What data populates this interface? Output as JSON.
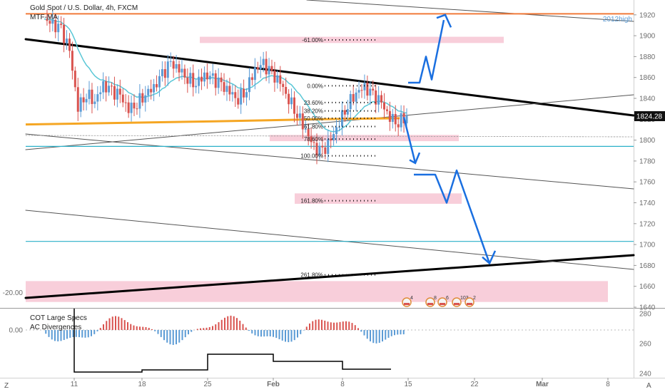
{
  "header": {
    "title": "Gold Spot / U.S. Dollar, 4h, FXCM",
    "indicator": "MTF-MA"
  },
  "labels": {
    "level_2012": "2012high",
    "price_badge": "1824.28",
    "sub_indicator_1": "COT Large Specs",
    "sub_indicator_2": "AC Divergences",
    "corner_left": "Z",
    "corner_right": "A"
  },
  "events": [
    "4",
    "8",
    "6",
    "103",
    "2"
  ],
  "colors": {
    "bull": "#5b9bd5",
    "bear": "#d9534f",
    "ma": "#5ac7d6",
    "golden": "#f5a623",
    "arrow": "#1a6fe0",
    "high_line": "#f07a3a",
    "zone": "#f7c6d4"
  },
  "chart_data": [
    {
      "type": "line",
      "title": "Gold Spot / U.S. Dollar, 4h, FXCM",
      "x_ticks": [
        "11",
        "18",
        "25",
        "Feb",
        "8",
        "15",
        "22",
        "Mar",
        "8"
      ],
      "y_ticks": [
        1920,
        1900,
        1880,
        1860,
        1840,
        1820,
        1800,
        1780,
        1760,
        1740,
        1720,
        1700,
        1680,
        1660,
        1640
      ],
      "ylim": [
        1638,
        1930
      ],
      "last_price": 1824.28,
      "horizontal_levels": [
        {
          "label": "2012high",
          "value": 1921,
          "color": "#f07a3a"
        },
        {
          "value": 1794,
          "color": "#2ab0c8"
        },
        {
          "value": 1703,
          "color": "#2ab0c8"
        }
      ],
      "fib_levels": [
        {
          "label": "-61.00%",
          "value": 1896
        },
        {
          "label": "0.00%",
          "value": 1852
        },
        {
          "label": "23.60%",
          "value": 1836
        },
        {
          "label": "38.20%",
          "value": 1828
        },
        {
          "label": "50.00%",
          "value": 1821
        },
        {
          "label": "61.80%",
          "value": 1813
        },
        {
          "label": "78.60%",
          "value": 1801
        },
        {
          "label": "100.00%",
          "value": 1785
        },
        {
          "label": "161.80%",
          "value": 1742
        },
        {
          "label": "261.80%",
          "value": 1671
        }
      ],
      "series": [
        {
          "values": [
            1916,
            1910,
            1905,
            1885,
            1832,
            1845,
            1838,
            1852,
            1846,
            1842,
            1830,
            1836,
            1845,
            1850,
            1862,
            1873,
            1868,
            1860,
            1855,
            1862,
            1858,
            1852,
            1846,
            1840,
            1850,
            1868,
            1872,
            1862,
            1855,
            1840,
            1826,
            1810,
            1792,
            1788,
            1800,
            1818,
            1835,
            1846,
            1850,
            1842,
            1835,
            1822,
            1818,
            1824
          ]
        }
      ]
    },
    {
      "type": "bar",
      "title": "COT Large Specs",
      "y_ticks": [
        "0.00",
        "-20.00"
      ],
      "ylim": [
        -22,
        6
      ]
    },
    {
      "type": "line",
      "title": "AC Divergences",
      "y_ticks": [
        280,
        260,
        240
      ],
      "ylim": [
        238,
        282
      ]
    }
  ]
}
